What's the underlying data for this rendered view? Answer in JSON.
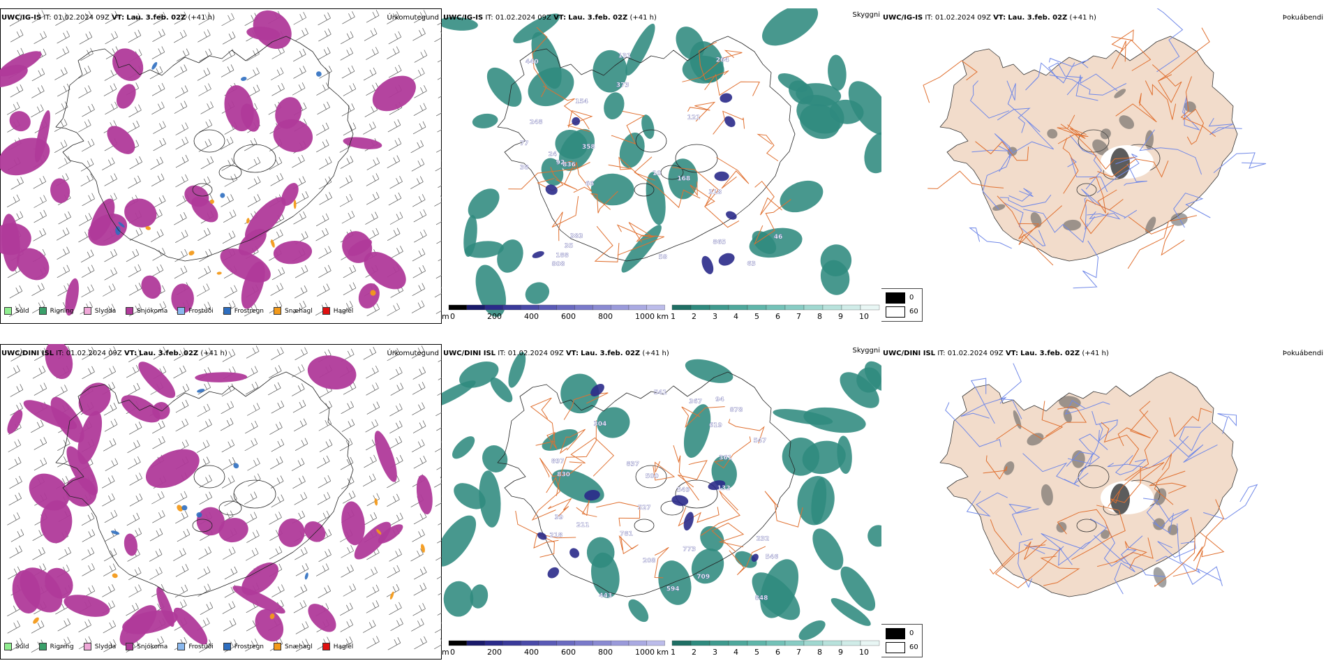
{
  "rows": [
    {
      "id": "igis",
      "precip": {
        "model_label": "UWC/IG-IS",
        "it_label": "IT:",
        "it_value": "01.02.2024 09Z",
        "vt_label": "VT:",
        "vt_value": "Lau. 3.feb. 02Z",
        "lead": "(+41 h)",
        "title": "Úrkomutegund"
      },
      "cloud": {
        "model_label": "UWC/IG-IS",
        "it_label": "IT:",
        "it_value": "01.02.2024 09Z",
        "vt_label": "VT:",
        "vt_value": "Lau. 3.feb. 02Z",
        "lead": "(+41 h)",
        "title": "Skyggni"
      },
      "fog": {
        "model_label": "UWC/IG-IS",
        "it_label": "IT:",
        "it_value": "01.02.2024 09Z",
        "vt_label": "VT:",
        "vt_value": "Lau. 3.feb. 02Z",
        "lead": "(+41 h)",
        "title": "Þokuábendi"
      },
      "cloud_labels": [
        "35",
        "58",
        "358",
        "10",
        "248",
        "383",
        "318",
        "154",
        "66",
        "92",
        "131",
        "264",
        "24",
        "63",
        "77",
        "46",
        "38",
        "373",
        "440",
        "188",
        "836",
        "121",
        "168",
        "865",
        "808"
      ]
    },
    {
      "id": "dini",
      "precip": {
        "model_label": "UWC/DINI ISL",
        "it_label": "IT:",
        "it_value": "01.02.2024 09Z",
        "vt_label": "VT:",
        "vt_value": "Lau. 3.feb. 02Z",
        "lead": "(+41 h)",
        "title": "Úrkomutegund"
      },
      "cloud": {
        "model_label": "UWC/DINI ISL",
        "it_label": "IT:",
        "it_value": "01.02.2024 09Z",
        "vt_label": "VT:",
        "vt_value": "Lau. 3.feb. 02Z",
        "lead": "(+41 h)",
        "title": "Skyggni"
      },
      "fog": {
        "model_label": "UWC/DINI ISL",
        "it_label": "IT:",
        "it_value": "01.02.2024 09Z",
        "vt_label": "VT:",
        "vt_value": "Lau. 3.feb. 02Z",
        "lead": "(+41 h)",
        "title": "Þokuábendi"
      },
      "cloud_labels": [
        "546",
        "367",
        "211",
        "594",
        "443",
        "304",
        "773",
        "541",
        "709",
        "527",
        "549",
        "619",
        "781",
        "232",
        "361",
        "132",
        "94",
        "218",
        "547",
        "208",
        "39",
        "897",
        "837",
        "830",
        "878",
        "848",
        "500"
      ]
    }
  ],
  "precip_legend": [
    {
      "label": "Súld",
      "color": "#90ee90"
    },
    {
      "label": "Rigning",
      "color": "#3aa06a"
    },
    {
      "label": "Slydda",
      "color": "#f0a8d8"
    },
    {
      "label": "Snjókoma",
      "color": "#b03a9a"
    },
    {
      "label": "Frostúði",
      "color": "#8ab8ee"
    },
    {
      "label": "Frostregn",
      "color": "#2e6ec0"
    },
    {
      "label": "Snæhagl",
      "color": "#f39a1a"
    },
    {
      "label": "Haglél",
      "color": "#e01010"
    }
  ],
  "cloud_legend": {
    "base_unit": "m",
    "base_ticks": [
      "0",
      "200",
      "400",
      "600",
      "800",
      "1000"
    ],
    "vis_unit": "km",
    "vis_ticks": [
      "1",
      "2",
      "3",
      "4",
      "5",
      "6",
      "7",
      "8",
      "9",
      "10"
    ]
  },
  "fog_legend": {
    "values": [
      "0",
      "60"
    ]
  },
  "colors": {
    "snow": "#b03a9a",
    "teal": "#2f8a7e",
    "navy": "#2a2a8a",
    "land": "#f2dccb",
    "road": "#e07030",
    "river": "#7088e8"
  }
}
